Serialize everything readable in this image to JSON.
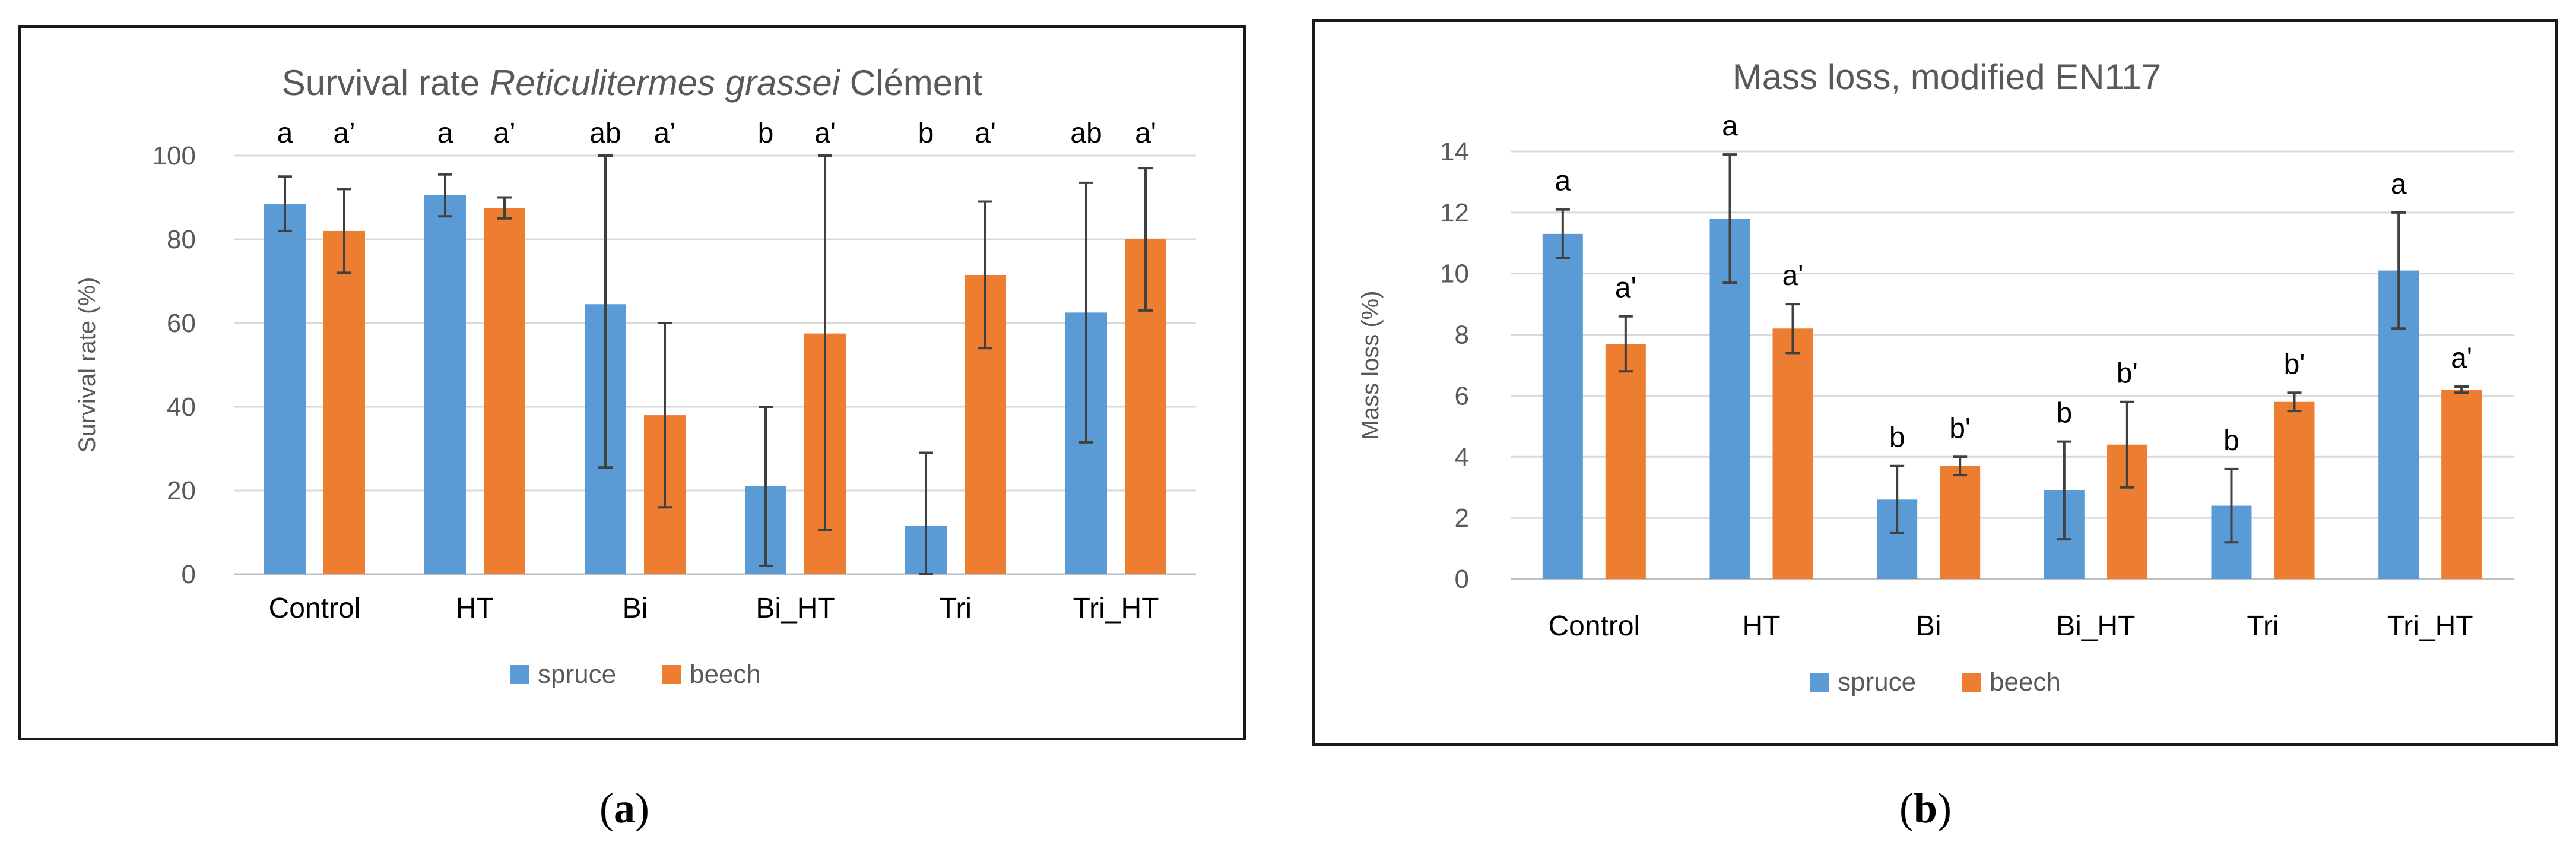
{
  "captions": [
    {
      "open": "(",
      "letter": "a",
      "close": ")"
    },
    {
      "open": "(",
      "letter": "b",
      "close": ")"
    }
  ],
  "chart_data": [
    {
      "type": "bar",
      "title_parts": [
        {
          "text": "Survival rate ",
          "italic": false
        },
        {
          "text": "Reticulitermes grassei",
          "italic": true
        },
        {
          "text": " Clément",
          "italic": false
        }
      ],
      "categories": [
        "Control",
        "HT",
        "Bi",
        "Bi_HT",
        "Tri",
        "Tri_HT"
      ],
      "series": [
        {
          "name": "spruce",
          "color": "#5B9BD5",
          "values": [
            88.5,
            90.5,
            64.5,
            21,
            11.5,
            62.5
          ],
          "errors": [
            6.5,
            5,
            39,
            19,
            17.5,
            31
          ],
          "labels": [
            "a",
            "a",
            "ab",
            "b",
            "b",
            "ab"
          ]
        },
        {
          "name": "beech",
          "color": "#ED7D31",
          "values": [
            82,
            87.5,
            38,
            57.5,
            71.5,
            80
          ],
          "errors": [
            10,
            2.5,
            22,
            47,
            17.5,
            17
          ],
          "labels": [
            "a’",
            "a’",
            "a’",
            "a'",
            "a'",
            "a'"
          ]
        }
      ],
      "xlabel": "",
      "ylabel": "Survival rate (%)",
      "ylim": [
        0,
        100
      ],
      "yticks": [
        0,
        20,
        40,
        60,
        80,
        100
      ],
      "grid": true,
      "legend": "bottom"
    },
    {
      "type": "bar",
      "title_parts": [
        {
          "text": "Mass loss, modified EN117",
          "italic": false
        }
      ],
      "categories": [
        "Control",
        "HT",
        "Bi",
        "Bi_HT",
        "Tri",
        "Tri_HT"
      ],
      "series": [
        {
          "name": "spruce",
          "color": "#5B9BD5",
          "values": [
            11.3,
            11.8,
            2.6,
            2.9,
            2.4,
            10.1
          ],
          "errors": [
            0.8,
            2.1,
            1.1,
            1.6,
            1.2,
            1.9
          ],
          "labels": [
            "a",
            "a",
            "b",
            "b",
            "b",
            "a"
          ]
        },
        {
          "name": "beech",
          "color": "#ED7D31",
          "values": [
            7.7,
            8.2,
            3.7,
            4.4,
            5.8,
            6.2
          ],
          "errors": [
            0.9,
            0.8,
            0.3,
            1.4,
            0.3,
            0.1
          ],
          "labels": [
            "a'",
            "a'",
            "b'",
            "b'",
            "b'",
            "a'"
          ]
        }
      ],
      "xlabel": "",
      "ylabel": "Mass loss (%)",
      "ylim": [
        0,
        14
      ],
      "yticks": [
        0,
        2,
        4,
        6,
        8,
        10,
        12,
        14
      ],
      "grid": true,
      "legend": "bottom"
    }
  ]
}
